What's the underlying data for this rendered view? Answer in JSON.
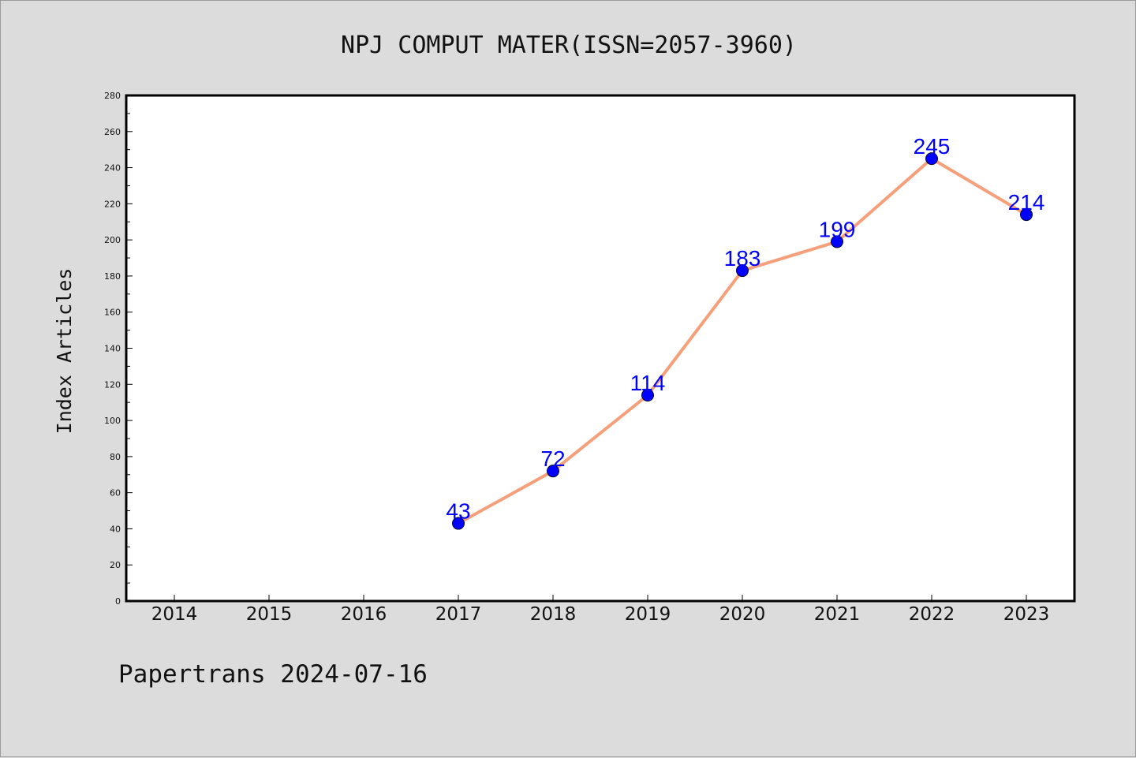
{
  "chart_data": {
    "type": "line",
    "title": "NPJ COMPUT MATER(ISSN=2057-3960)",
    "xlabel": "",
    "ylabel": "Index Articles",
    "categories": [
      "2014",
      "2015",
      "2016",
      "2017",
      "2018",
      "2019",
      "2020",
      "2021",
      "2022",
      "2023"
    ],
    "series": [
      {
        "values": [
          null,
          null,
          null,
          43,
          72,
          114,
          183,
          199,
          245,
          214
        ],
        "color": "#f5a07a",
        "marker_color": "#0000ff",
        "label_color": "#0000ff"
      }
    ],
    "ylim": [
      0,
      280
    ],
    "yticks": [
      0,
      20,
      40,
      60,
      80,
      100,
      120,
      140,
      160,
      180,
      200,
      220,
      240,
      260,
      280
    ],
    "grid": false,
    "legend": "none"
  },
  "footer": {
    "text": "Papertrans 2024-07-16"
  },
  "colors": {
    "background": "#dcdcdc",
    "plot_background": "#ffffff",
    "line": "#f5a07a",
    "marker": "#0000ff"
  }
}
